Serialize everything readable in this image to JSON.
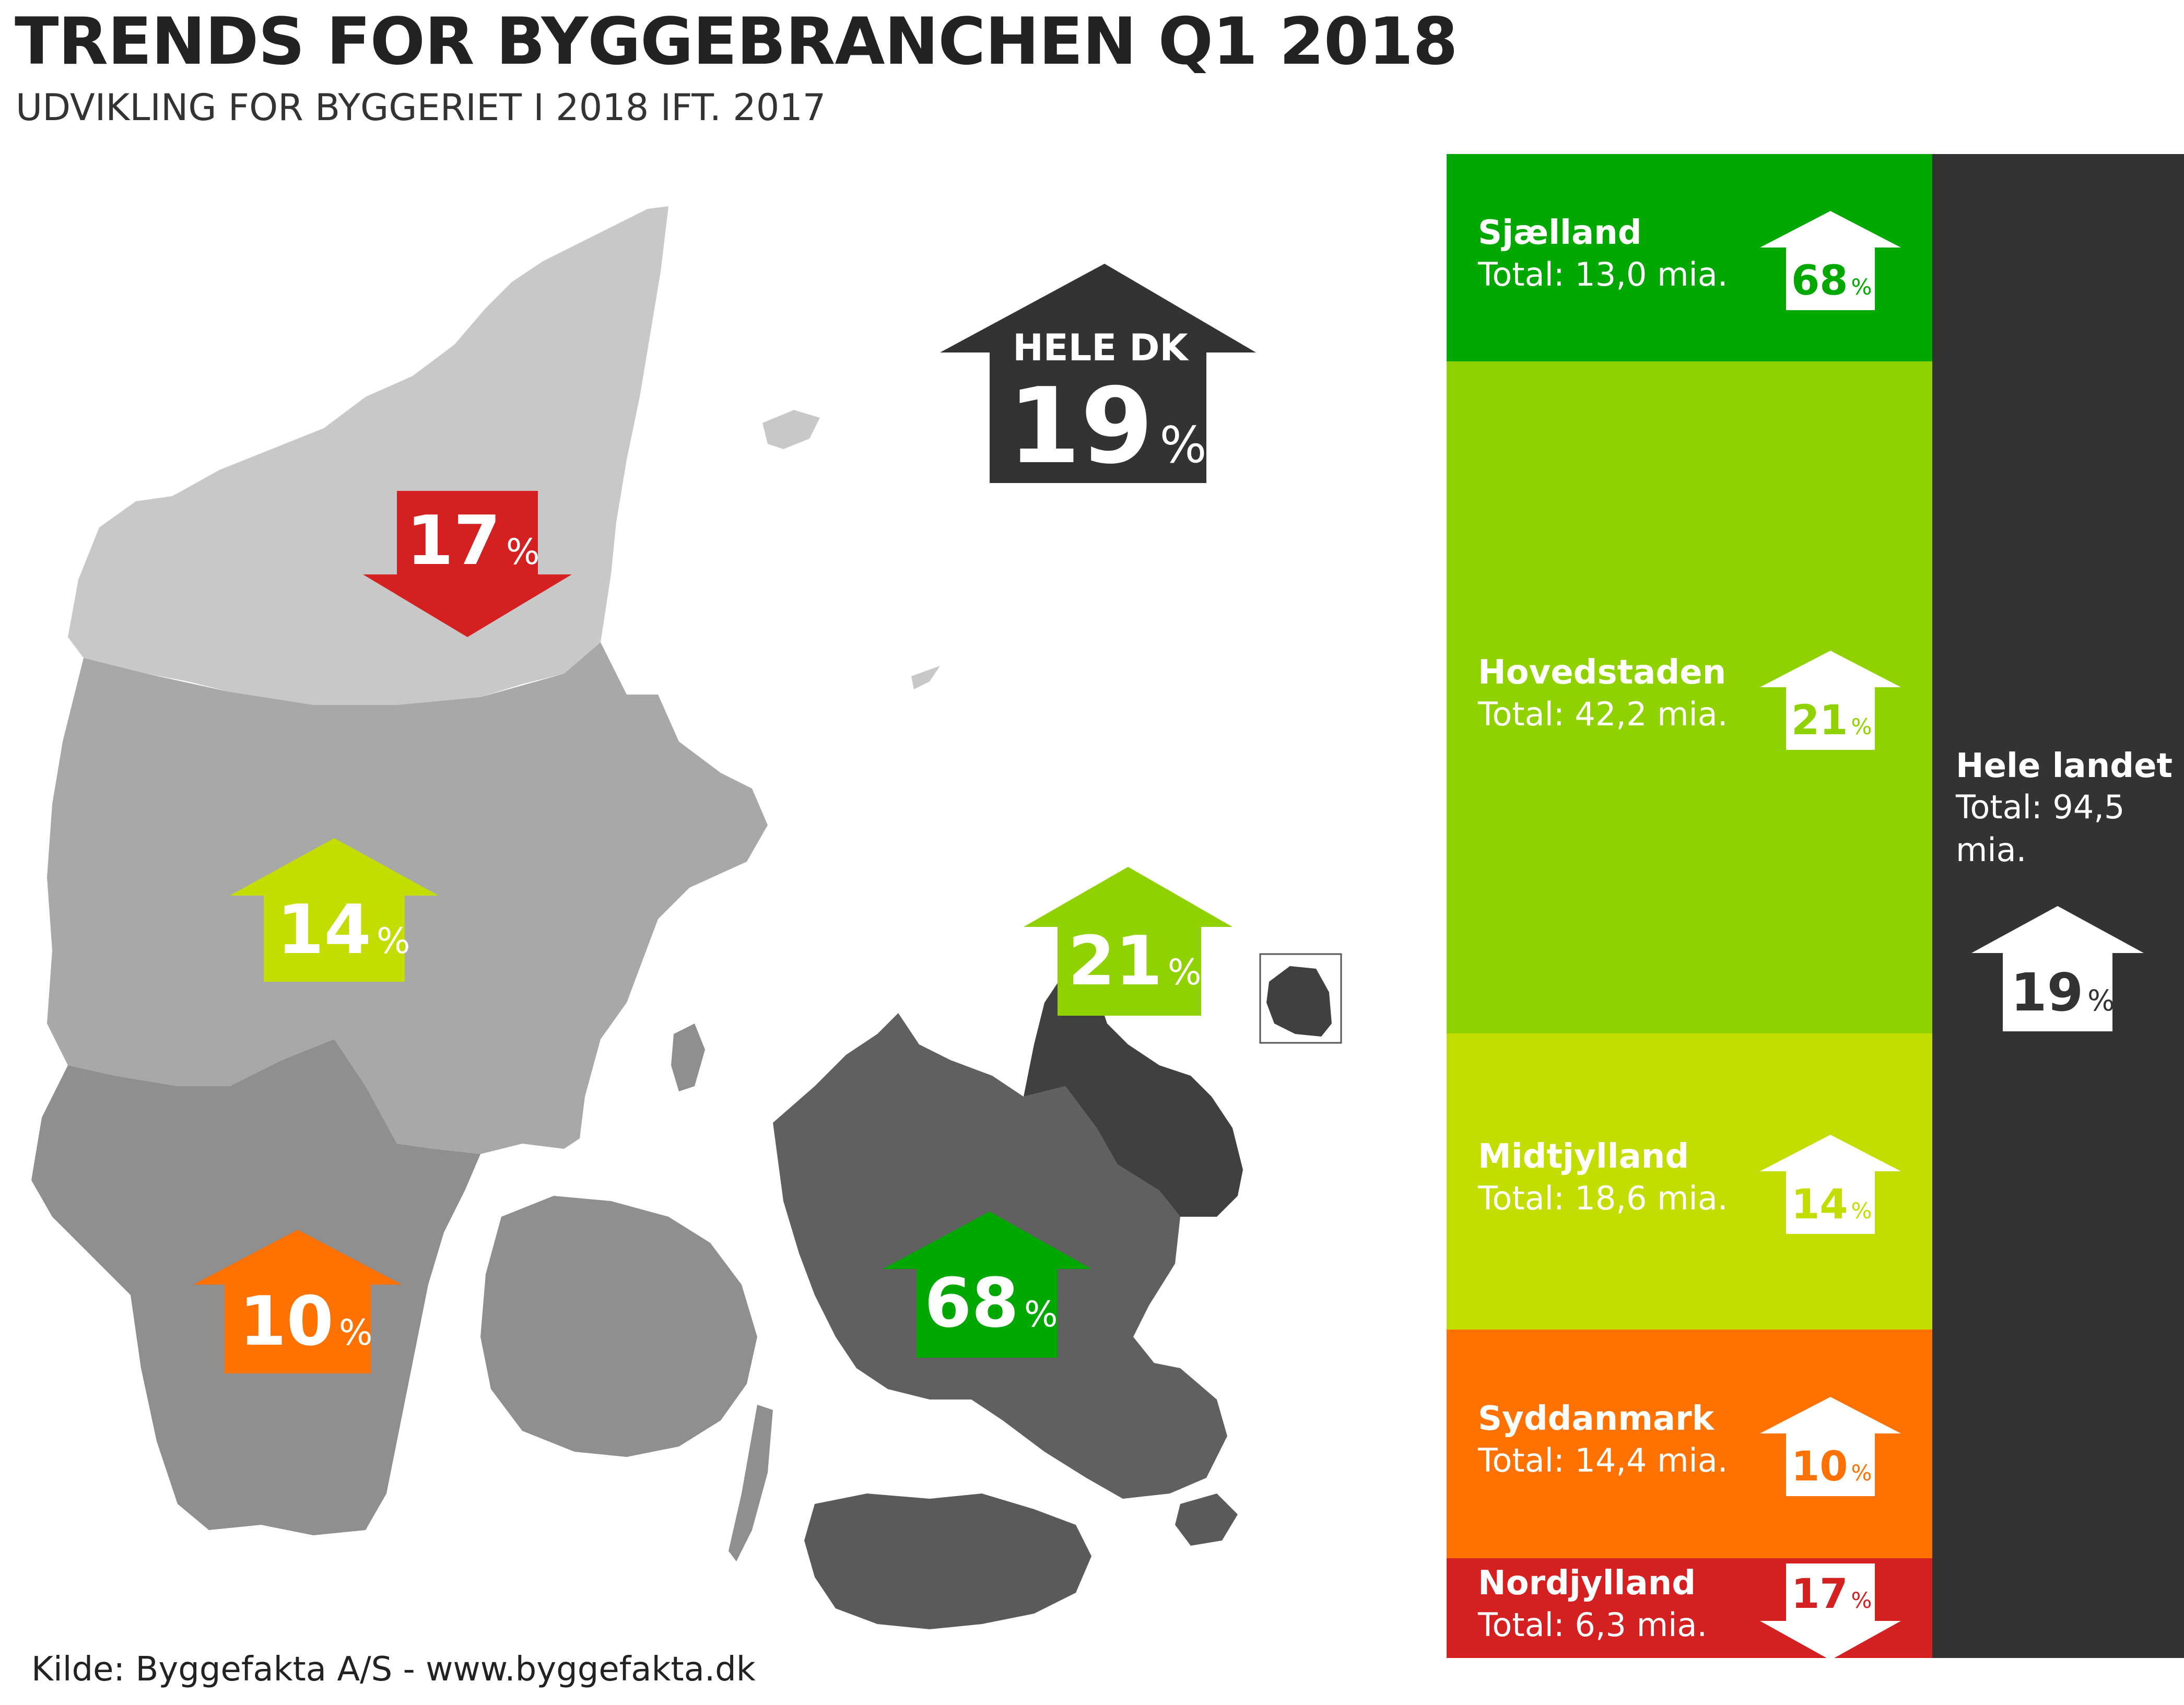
{
  "header": {
    "title": "TRENDS FOR BYGGEBRANCHEN Q1 2018",
    "subtitle": "UDVIKLING FOR BYGGERIET I 2018 IFT. 2017"
  },
  "source": "Kilde: Byggefakta A/S - www.byggefakta.dk",
  "colors": {
    "sjaelland": "#00a800",
    "hovedstaden": "#8fd200",
    "midtjylland": "#c4dd00",
    "syddanmark": "#ff7100",
    "nordjylland": "#d42020",
    "hele_landet": "#333333"
  },
  "map": {
    "national": {
      "label": "HELE DK",
      "value": "19",
      "unit": "%",
      "direction": "up"
    },
    "nordjylland": {
      "value": "17",
      "unit": "%",
      "direction": "down"
    },
    "midtjylland": {
      "value": "14",
      "unit": "%",
      "direction": "up"
    },
    "syddanmark": {
      "value": "10",
      "unit": "%",
      "direction": "up"
    },
    "sjaelland": {
      "value": "68",
      "unit": "%",
      "direction": "up"
    },
    "hovedstaden": {
      "value": "21",
      "unit": "%",
      "direction": "up"
    }
  },
  "regions": [
    {
      "key": "sjaelland",
      "name": "Sjælland",
      "total": "Total: 13,0 mia.",
      "value": "68",
      "unit": "%",
      "direction": "up",
      "color": "#00a800",
      "share": 0.138
    },
    {
      "key": "hovedstaden",
      "name": "Hovedstaden",
      "total": "Total: 42,2 mia.",
      "value": "21",
      "unit": "%",
      "direction": "up",
      "color": "#8fd200",
      "share": 0.447
    },
    {
      "key": "midtjylland",
      "name": "Midtjylland",
      "total": "Total: 18,6 mia.",
      "value": "14",
      "unit": "%",
      "direction": "up",
      "color": "#c4dd00",
      "share": 0.197
    },
    {
      "key": "syddanmark",
      "name": "Syddanmark",
      "total": "Total: 14,4 mia.",
      "value": "10",
      "unit": "%",
      "direction": "up",
      "color": "#ff7100",
      "share": 0.152
    },
    {
      "key": "nordjylland",
      "name": "Nordjylland",
      "total": "Total: 6,3 mia.",
      "value": "17",
      "unit": "%",
      "direction": "down",
      "color": "#d42020",
      "share": 0.067
    }
  ],
  "hele_landet": {
    "name": "Hele landet",
    "total": "Total: 94,5 mia.",
    "value": "19",
    "unit": "%",
    "direction": "up"
  }
}
